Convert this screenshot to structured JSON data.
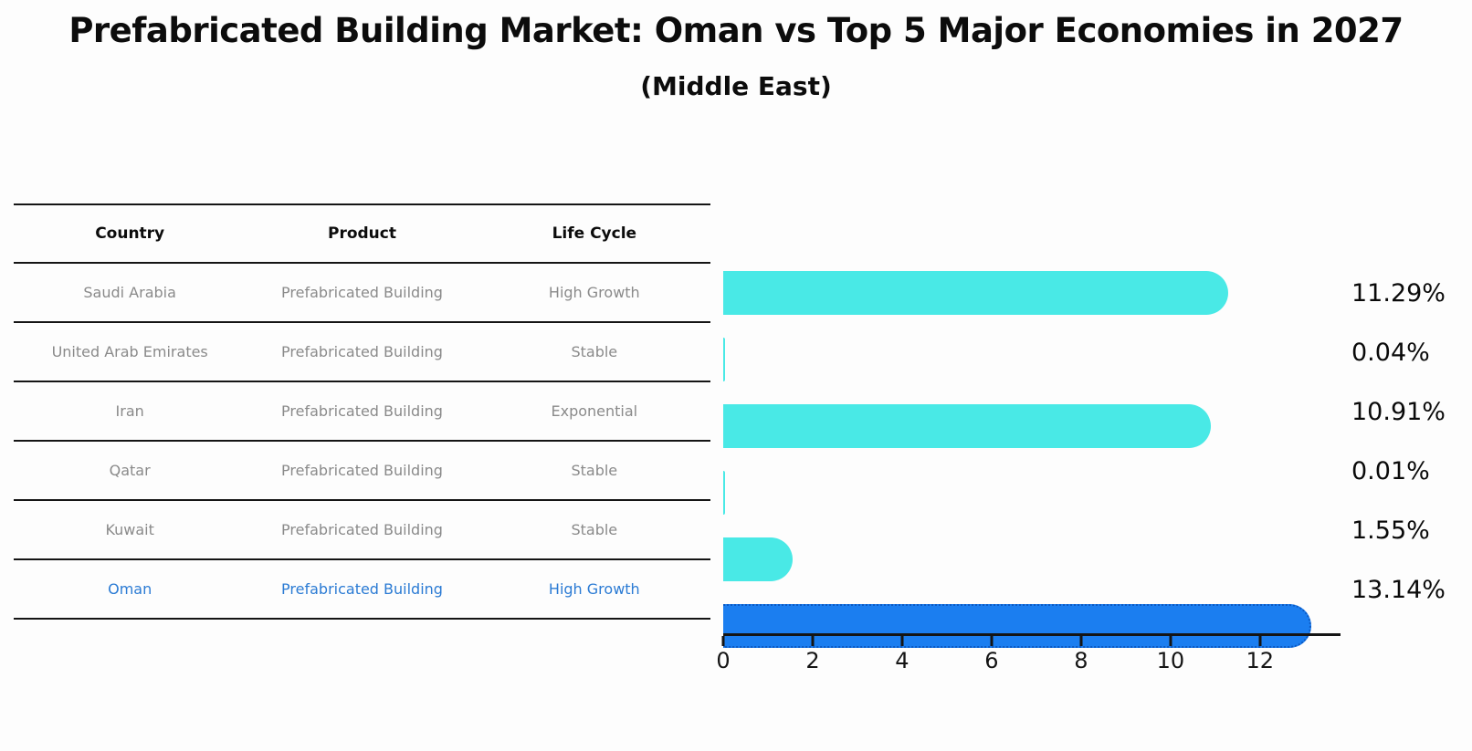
{
  "title": "Prefabricated Building Market: Oman vs Top 5 Major Economies in 2027",
  "subtitle": "(Middle East)",
  "table": {
    "headers": [
      "Country",
      "Product",
      "Life Cycle"
    ],
    "rows": [
      {
        "country": "Saudi Arabia",
        "product": "Prefabricated Building",
        "life_cycle": "High Growth",
        "highlight": false
      },
      {
        "country": "United Arab Emirates",
        "product": "Prefabricated Building",
        "life_cycle": "Stable",
        "highlight": false
      },
      {
        "country": "Iran",
        "product": "Prefabricated Building",
        "life_cycle": "Exponential",
        "highlight": false
      },
      {
        "country": "Qatar",
        "product": "Prefabricated Building",
        "life_cycle": "Stable",
        "highlight": false
      },
      {
        "country": "Kuwait",
        "product": "Prefabricated Building",
        "life_cycle": "Stable",
        "highlight": false
      },
      {
        "country": "Oman",
        "product": "Prefabricated Building",
        "life_cycle": "High Growth",
        "highlight": true
      }
    ]
  },
  "chart_data": {
    "type": "bar",
    "orientation": "horizontal",
    "title": "Prefabricated Building Market: Oman vs Top 5 Major Economies in 2027 (Middle East)",
    "categories": [
      "Saudi Arabia",
      "United Arab Emirates",
      "Iran",
      "Qatar",
      "Kuwait",
      "Oman"
    ],
    "values": [
      11.29,
      0.04,
      10.91,
      0.01,
      1.55,
      13.14
    ],
    "value_labels": [
      "11.29%",
      "0.04%",
      "10.91%",
      "0.01%",
      "1.55%",
      "13.14%"
    ],
    "xlabel": "",
    "ylabel": "",
    "xticks": [
      0,
      2,
      4,
      6,
      8,
      10,
      12
    ],
    "xlim": [
      0,
      13.8
    ],
    "grid": false,
    "legend": "none",
    "highlight_index": 5,
    "bar_color": "#49e9e6",
    "highlight_color": "#1b7ef0",
    "highlight_border_color": "#0c59c2",
    "axis_color": "#151515",
    "row_text_color": "#8a8a8a",
    "highlight_text_color": "#2b7bd4"
  }
}
